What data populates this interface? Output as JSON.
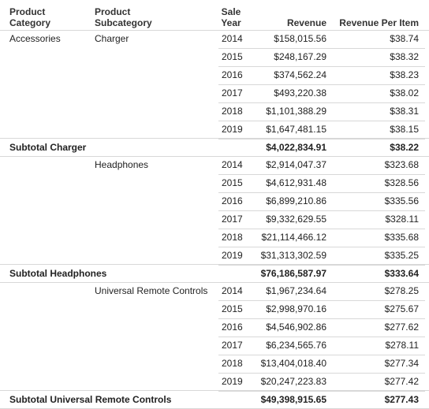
{
  "headers": {
    "product_category": "Product Category",
    "product_subcategory": "Product Subcategory",
    "sale_year": "Sale Year",
    "revenue": "Revenue",
    "revenue_per_item": "Revenue Per Item"
  },
  "category": "Accessories",
  "groups": [
    {
      "subcategory": "Charger",
      "rows": [
        {
          "year": "2014",
          "revenue": "$158,015.56",
          "rpi": "$38.74"
        },
        {
          "year": "2015",
          "revenue": "$248,167.29",
          "rpi": "$38.32"
        },
        {
          "year": "2016",
          "revenue": "$374,562.24",
          "rpi": "$38.23"
        },
        {
          "year": "2017",
          "revenue": "$493,220.38",
          "rpi": "$38.02"
        },
        {
          "year": "2018",
          "revenue": "$1,101,388.29",
          "rpi": "$38.31"
        },
        {
          "year": "2019",
          "revenue": "$1,647,481.15",
          "rpi": "$38.15"
        }
      ],
      "subtotal": {
        "label": "Subtotal Charger",
        "revenue": "$4,022,834.91",
        "rpi": "$38.22"
      }
    },
    {
      "subcategory": "Headphones",
      "rows": [
        {
          "year": "2014",
          "revenue": "$2,914,047.37",
          "rpi": "$323.68"
        },
        {
          "year": "2015",
          "revenue": "$4,612,931.48",
          "rpi": "$328.56"
        },
        {
          "year": "2016",
          "revenue": "$6,899,210.86",
          "rpi": "$335.56"
        },
        {
          "year": "2017",
          "revenue": "$9,332,629.55",
          "rpi": "$328.11"
        },
        {
          "year": "2018",
          "revenue": "$21,114,466.12",
          "rpi": "$335.68"
        },
        {
          "year": "2019",
          "revenue": "$31,313,302.59",
          "rpi": "$335.25"
        }
      ],
      "subtotal": {
        "label": "Subtotal Headphones",
        "revenue": "$76,186,587.97",
        "rpi": "$333.64"
      }
    },
    {
      "subcategory": "Universal Remote Controls",
      "rows": [
        {
          "year": "2014",
          "revenue": "$1,967,234.64",
          "rpi": "$278.25"
        },
        {
          "year": "2015",
          "revenue": "$2,998,970.16",
          "rpi": "$275.67"
        },
        {
          "year": "2016",
          "revenue": "$4,546,902.86",
          "rpi": "$277.62"
        },
        {
          "year": "2017",
          "revenue": "$6,234,565.76",
          "rpi": "$278.11"
        },
        {
          "year": "2018",
          "revenue": "$13,404,018.40",
          "rpi": "$277.34"
        },
        {
          "year": "2019",
          "revenue": "$20,247,223.83",
          "rpi": "$277.42"
        }
      ],
      "subtotal": {
        "label": "Subtotal Universal Remote Controls",
        "revenue": "$49,398,915.65",
        "rpi": "$277.43"
      }
    }
  ]
}
